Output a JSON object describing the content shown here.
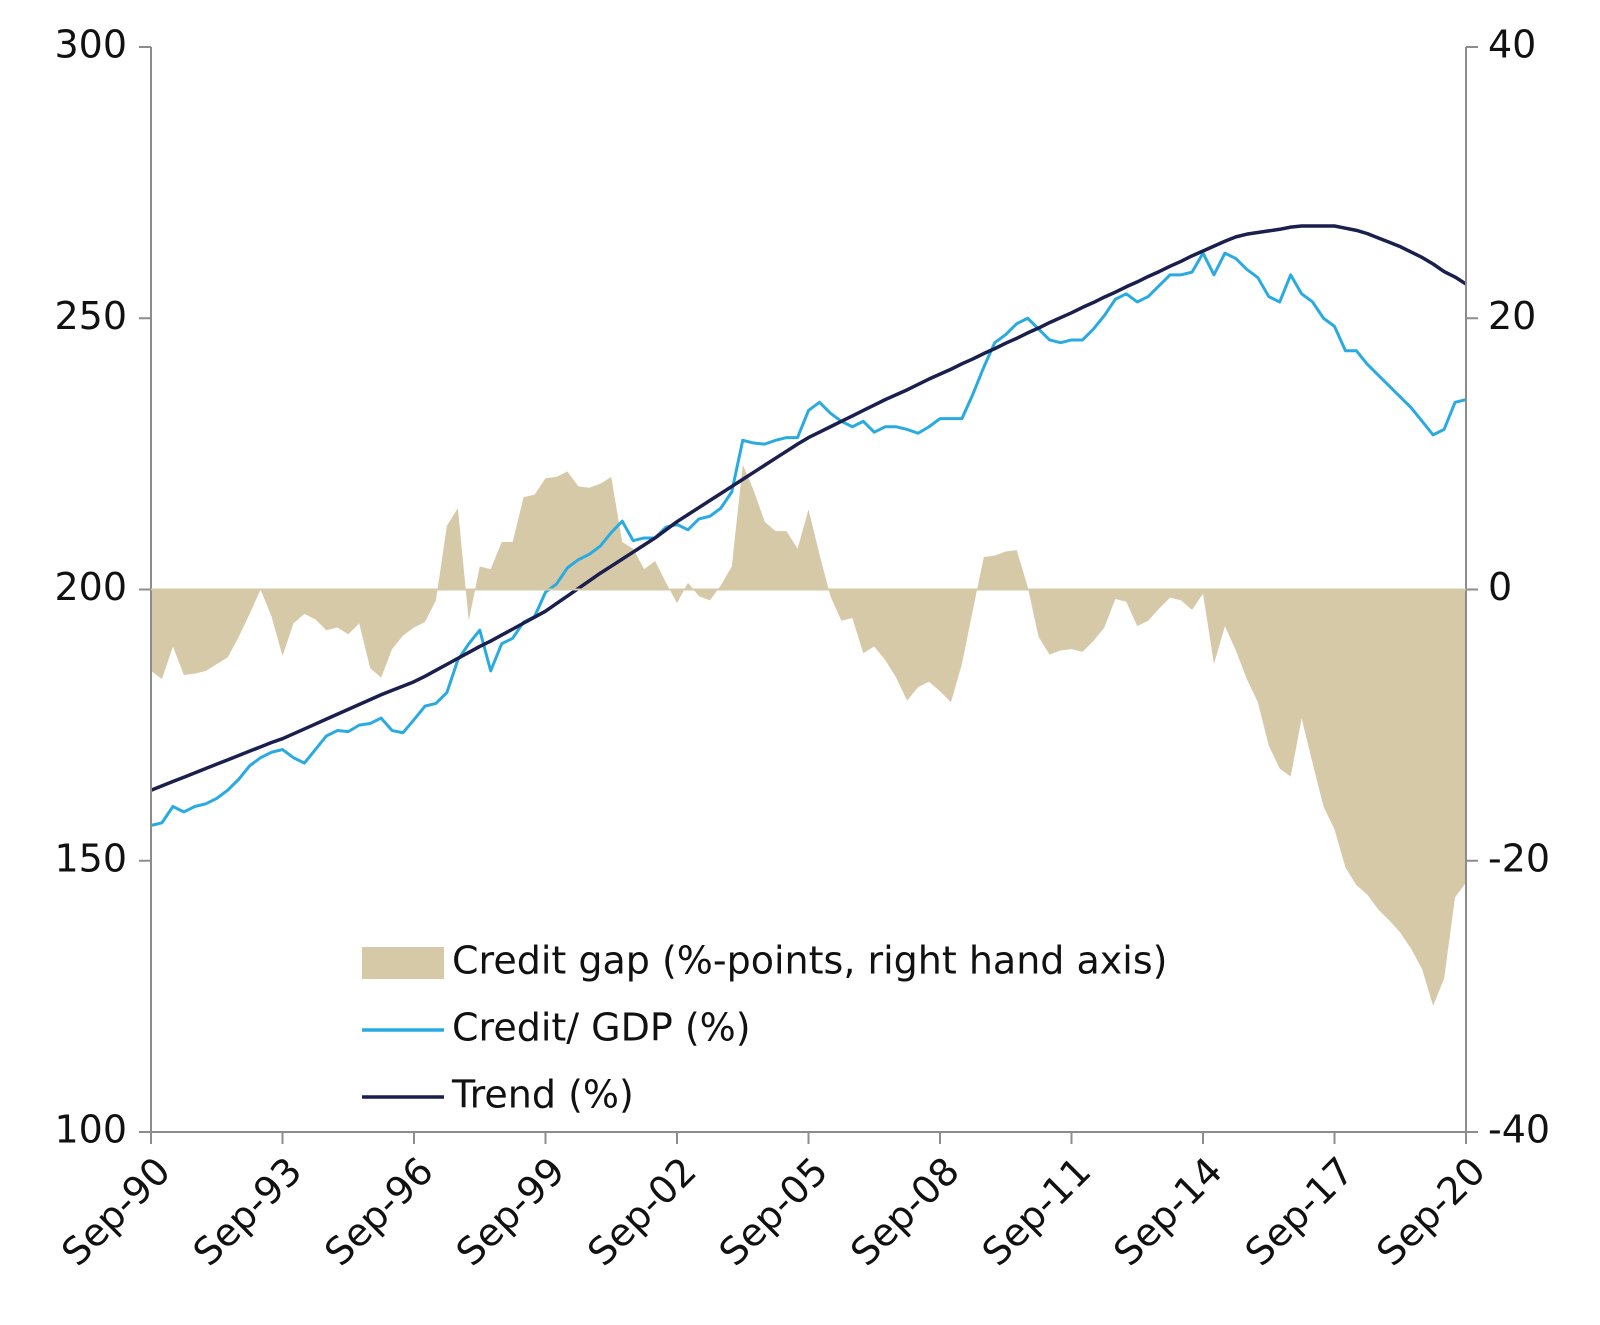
{
  "chart_data": {
    "type": "line",
    "categories": [
      "Sep-90",
      null,
      null,
      null,
      null,
      null,
      null,
      null,
      null,
      null,
      null,
      null,
      "Sep-93",
      null,
      null,
      null,
      null,
      null,
      null,
      null,
      null,
      null,
      null,
      null,
      "Sep-96",
      null,
      null,
      null,
      null,
      null,
      null,
      null,
      null,
      null,
      null,
      null,
      "Sep-99",
      null,
      null,
      null,
      null,
      null,
      null,
      null,
      null,
      null,
      null,
      null,
      "Sep-02",
      null,
      null,
      null,
      null,
      null,
      null,
      null,
      null,
      null,
      null,
      null,
      "Sep-05",
      null,
      null,
      null,
      null,
      null,
      null,
      null,
      null,
      null,
      null,
      null,
      "Sep-08",
      null,
      null,
      null,
      null,
      null,
      null,
      null,
      null,
      null,
      null,
      null,
      "Sep-11",
      null,
      null,
      null,
      null,
      null,
      null,
      null,
      null,
      null,
      null,
      null,
      "Sep-14",
      null,
      null,
      null,
      null,
      null,
      null,
      null,
      null,
      null,
      null,
      null,
      "Sep-17",
      null,
      null,
      null,
      null,
      null,
      null,
      null,
      null,
      null,
      null,
      null,
      "Sep-20"
    ],
    "series": [
      {
        "name": "Credit gap (%-points, right hand axis)",
        "type": "area",
        "axis": "y2",
        "color": "#d6c9a8",
        "values": [
          -6,
          -6.6,
          -4.2,
          -6.3,
          -6.2,
          -6,
          -5.5,
          -5,
          -3.5,
          -1.8,
          0,
          -2,
          -4.9,
          -2.5,
          -1.8,
          -2.2,
          -3,
          -2.8,
          -3.3,
          -2.5,
          -5.8,
          -6.5,
          -4.4,
          -3.4,
          -2.8,
          -2.4,
          -0.8,
          4.7,
          6,
          -2.3,
          1.7,
          1.5,
          3.5,
          3.5,
          6.8,
          7,
          8.2,
          8.3,
          8.7,
          7.6,
          7.5,
          7.8,
          8.3,
          3.5,
          3,
          1.5,
          2.1,
          0.5,
          -1,
          0.5,
          -0.5,
          -0.8,
          0.3,
          1.7,
          9.2,
          7.3,
          5,
          4.3,
          4.3,
          3,
          5.9,
          2.6,
          -0.5,
          -2.3,
          -2.1,
          -4.7,
          -4.2,
          -5.2,
          -6.5,
          -8.2,
          -7.2,
          -6.8,
          -7.5,
          -8.3,
          -5.5,
          -1.5,
          2.4,
          2.5,
          2.8,
          2.9,
          0.2,
          -3.5,
          -4.8,
          -4.5,
          -4.4,
          -4.6,
          -3.8,
          -2.8,
          -0.7,
          -0.9,
          -2.7,
          -2.3,
          -1.4,
          -0.6,
          -0.8,
          -1.5,
          -0.3,
          -5.5,
          -2.7,
          -4.5,
          -6.6,
          -8.3,
          -11.5,
          -13.2,
          -13.8,
          -9.5,
          -12.8,
          -16,
          -17.7,
          -20.5,
          -21.8,
          -22.5,
          -23.6,
          -24.4,
          -25.3,
          -26.5,
          -28,
          -30.7,
          -28.7,
          -22.7,
          -21.6
        ]
      },
      {
        "name": "Credit/ GDP (%)",
        "type": "line",
        "color": "#29abe2",
        "values": [
          156.5,
          157,
          160,
          159,
          160,
          160.5,
          161.5,
          163,
          165,
          167.5,
          169,
          170,
          170.5,
          169,
          168,
          170.5,
          173,
          174,
          173.8,
          175,
          175.3,
          176.3,
          174,
          173.6,
          176,
          178.5,
          179,
          181,
          187,
          190,
          192.5,
          185,
          190,
          191,
          194,
          195,
          199.5,
          201,
          204,
          205.5,
          206.5,
          208,
          210.5,
          212.6,
          209,
          209.5,
          209.5,
          211.5,
          212,
          211,
          213,
          213.5,
          215,
          218,
          227.5,
          227,
          226.8,
          227.5,
          228,
          228,
          233,
          234.5,
          232.5,
          231,
          230,
          231,
          229,
          230,
          230,
          229.5,
          228.8,
          230,
          231.5,
          231.5,
          231.5,
          236,
          241,
          245.5,
          247,
          249,
          250,
          248,
          246,
          245.5,
          246,
          246,
          248,
          250.5,
          253.5,
          254.5,
          253,
          254,
          256,
          258,
          258,
          258.5,
          262,
          258,
          262,
          261,
          259,
          257.5,
          254,
          253,
          258,
          254.5,
          253,
          250,
          248.5,
          244,
          244,
          241.5,
          239.5,
          237.5,
          235.5,
          233.5,
          231,
          228.5,
          229.5,
          234.5,
          235
        ]
      },
      {
        "name": "Trend (%)",
        "type": "line",
        "color": "#1a1f4e",
        "values": [
          163,
          163.8,
          164.6,
          165.4,
          166.2,
          167,
          167.8,
          168.6,
          169.4,
          170.2,
          171,
          171.8,
          172.5,
          173.4,
          174.3,
          175.2,
          176.1,
          177,
          177.9,
          178.8,
          179.7,
          180.6,
          181.4,
          182.2,
          183,
          184,
          185.1,
          186.2,
          187.3,
          188.4,
          189.5,
          190.5,
          191.6,
          192.7,
          193.8,
          194.9,
          196,
          197.4,
          198.8,
          200.2,
          201.6,
          203,
          204.3,
          205.6,
          206.9,
          208.2,
          209.5,
          211,
          212.5,
          213.8,
          215.1,
          216.4,
          217.7,
          219,
          220.3,
          221.6,
          222.9,
          224.2,
          225.5,
          226.8,
          228,
          229,
          230,
          231,
          232,
          233,
          234,
          235,
          235.9,
          236.8,
          237.8,
          238.8,
          239.7,
          240.6,
          241.6,
          242.5,
          243.5,
          244.4,
          245.4,
          246.3,
          247.3,
          248.2,
          249.2,
          250.1,
          251,
          252,
          252.9,
          253.9,
          254.8,
          255.8,
          256.7,
          257.7,
          258.6,
          259.6,
          260.5,
          261.5,
          262.4,
          263.3,
          264.2,
          265,
          265.5,
          265.8,
          266.1,
          266.4,
          266.8,
          267,
          267,
          267,
          267,
          266.6,
          266.2,
          265.6,
          264.8,
          264,
          263.2,
          262.2,
          261.2,
          260,
          258.6,
          257.6,
          256.3
        ]
      }
    ],
    "ylim": [
      100,
      300
    ],
    "yticks": [
      100,
      150,
      200,
      250,
      300
    ],
    "y2lim": [
      -40,
      40
    ],
    "y2ticks": [
      -40,
      -20,
      0,
      20,
      40
    ]
  }
}
